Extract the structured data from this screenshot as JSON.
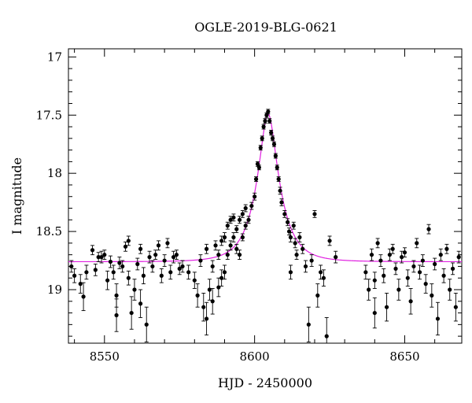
{
  "chart_data": {
    "type": "scatter",
    "title": "OGLE-2019-BLG-0621",
    "xlabel": "HJD - 2450000",
    "ylabel": "I magnitude",
    "xlim": [
      8538,
      8669
    ],
    "ylim": [
      19.46,
      16.93
    ],
    "y_inverted": true,
    "xticks": [
      8550,
      8600,
      8650
    ],
    "xtick_labels": [
      "8550",
      "8600",
      "8650"
    ],
    "yticks": [
      17,
      17.5,
      18,
      18.5,
      19
    ],
    "ytick_labels": [
      "17",
      "17.5",
      "18",
      "18.5",
      "19"
    ],
    "grid": false,
    "series": [
      {
        "kind": "data",
        "color": "#000000",
        "points": [
          {
            "x": 8539,
            "y": 18.8,
            "err": 0.05
          },
          {
            "x": 8540,
            "y": 18.88,
            "err": 0.06
          },
          {
            "x": 8542,
            "y": 18.95,
            "err": 0.08
          },
          {
            "x": 8543,
            "y": 19.06,
            "err": 0.12
          },
          {
            "x": 8544,
            "y": 18.85,
            "err": 0.06
          },
          {
            "x": 8546,
            "y": 18.66,
            "err": 0.04
          },
          {
            "x": 8547,
            "y": 18.83,
            "err": 0.05
          },
          {
            "x": 8548,
            "y": 18.72,
            "err": 0.04
          },
          {
            "x": 8549,
            "y": 18.72,
            "err": 0.05
          },
          {
            "x": 8550,
            "y": 18.7,
            "err": 0.04
          },
          {
            "x": 8551,
            "y": 18.92,
            "err": 0.08
          },
          {
            "x": 8552,
            "y": 18.76,
            "err": 0.05
          },
          {
            "x": 8553,
            "y": 18.85,
            "err": 0.06
          },
          {
            "x": 8554,
            "y": 19.05,
            "err": 0.1
          },
          {
            "x": 8554,
            "y": 19.22,
            "err": 0.14
          },
          {
            "x": 8555,
            "y": 18.77,
            "err": 0.05
          },
          {
            "x": 8556,
            "y": 18.8,
            "err": 0.05
          },
          {
            "x": 8557,
            "y": 18.63,
            "err": 0.04
          },
          {
            "x": 8558,
            "y": 18.58,
            "err": 0.04
          },
          {
            "x": 8558,
            "y": 18.9,
            "err": 0.06
          },
          {
            "x": 8559,
            "y": 19.2,
            "err": 0.14
          },
          {
            "x": 8560,
            "y": 19.0,
            "err": 0.09
          },
          {
            "x": 8561,
            "y": 18.78,
            "err": 0.05
          },
          {
            "x": 8562,
            "y": 18.65,
            "err": 0.04
          },
          {
            "x": 8562,
            "y": 19.12,
            "err": 0.12
          },
          {
            "x": 8563,
            "y": 18.88,
            "err": 0.07
          },
          {
            "x": 8564,
            "y": 19.3,
            "err": 0.15
          },
          {
            "x": 8565,
            "y": 18.72,
            "err": 0.05
          },
          {
            "x": 8566,
            "y": 18.8,
            "err": 0.05
          },
          {
            "x": 8567,
            "y": 18.7,
            "err": 0.04
          },
          {
            "x": 8568,
            "y": 18.62,
            "err": 0.04
          },
          {
            "x": 8569,
            "y": 18.88,
            "err": 0.06
          },
          {
            "x": 8570,
            "y": 18.75,
            "err": 0.05
          },
          {
            "x": 8571,
            "y": 18.6,
            "err": 0.04
          },
          {
            "x": 8572,
            "y": 18.85,
            "err": 0.06
          },
          {
            "x": 8573,
            "y": 18.72,
            "err": 0.05
          },
          {
            "x": 8574,
            "y": 18.7,
            "err": 0.04
          },
          {
            "x": 8575,
            "y": 18.82,
            "err": 0.05
          },
          {
            "x": 8576,
            "y": 18.8,
            "err": 0.05
          },
          {
            "x": 8578,
            "y": 18.85,
            "err": 0.06
          },
          {
            "x": 8580,
            "y": 18.92,
            "err": 0.07
          },
          {
            "x": 8581,
            "y": 19.05,
            "err": 0.1
          },
          {
            "x": 8582,
            "y": 18.75,
            "err": 0.05
          },
          {
            "x": 8583,
            "y": 19.15,
            "err": 0.12
          },
          {
            "x": 8584,
            "y": 19.25,
            "err": 0.14
          },
          {
            "x": 8584,
            "y": 18.65,
            "err": 0.04
          },
          {
            "x": 8585,
            "y": 19.0,
            "err": 0.09
          },
          {
            "x": 8586,
            "y": 18.8,
            "err": 0.05
          },
          {
            "x": 8586,
            "y": 19.1,
            "err": 0.11
          },
          {
            "x": 8587,
            "y": 18.62,
            "err": 0.04
          },
          {
            "x": 8588,
            "y": 18.7,
            "err": 0.04
          },
          {
            "x": 8588,
            "y": 18.98,
            "err": 0.08
          },
          {
            "x": 8589,
            "y": 18.9,
            "err": 0.07
          },
          {
            "x": 8589,
            "y": 18.58,
            "err": 0.04
          },
          {
            "x": 8590,
            "y": 18.85,
            "err": 0.06
          },
          {
            "x": 8590,
            "y": 18.55,
            "err": 0.04
          },
          {
            "x": 8591,
            "y": 18.7,
            "err": 0.04
          },
          {
            "x": 8591,
            "y": 18.45,
            "err": 0.03
          },
          {
            "x": 8592,
            "y": 18.62,
            "err": 0.04
          },
          {
            "x": 8592,
            "y": 18.4,
            "err": 0.03
          },
          {
            "x": 8593,
            "y": 18.55,
            "err": 0.04
          },
          {
            "x": 8593,
            "y": 18.38,
            "err": 0.03
          },
          {
            "x": 8594,
            "y": 18.48,
            "err": 0.03
          },
          {
            "x": 8594,
            "y": 18.65,
            "err": 0.04
          },
          {
            "x": 8595,
            "y": 18.4,
            "err": 0.03
          },
          {
            "x": 8595,
            "y": 18.7,
            "err": 0.04
          },
          {
            "x": 8596,
            "y": 18.35,
            "err": 0.03
          },
          {
            "x": 8596,
            "y": 18.55,
            "err": 0.03
          },
          {
            "x": 8597,
            "y": 18.3,
            "err": 0.03
          },
          {
            "x": 8597,
            "y": 18.45,
            "err": 0.03
          },
          {
            "x": 8598,
            "y": 18.4,
            "err": 0.03
          },
          {
            "x": 8599,
            "y": 18.28,
            "err": 0.03
          },
          {
            "x": 8600,
            "y": 18.2,
            "err": 0.03
          },
          {
            "x": 8600.5,
            "y": 18.05,
            "err": 0.02
          },
          {
            "x": 8601,
            "y": 17.92,
            "err": 0.02
          },
          {
            "x": 8601.5,
            "y": 17.95,
            "err": 0.02
          },
          {
            "x": 8602,
            "y": 17.78,
            "err": 0.02
          },
          {
            "x": 8602.5,
            "y": 17.7,
            "err": 0.02
          },
          {
            "x": 8603,
            "y": 17.6,
            "err": 0.02
          },
          {
            "x": 8603.5,
            "y": 17.55,
            "err": 0.02
          },
          {
            "x": 8604,
            "y": 17.5,
            "err": 0.02
          },
          {
            "x": 8604.5,
            "y": 17.47,
            "err": 0.02
          },
          {
            "x": 8605,
            "y": 17.55,
            "err": 0.02
          },
          {
            "x": 8605.5,
            "y": 17.65,
            "err": 0.02
          },
          {
            "x": 8606,
            "y": 17.7,
            "err": 0.02
          },
          {
            "x": 8606.5,
            "y": 17.75,
            "err": 0.02
          },
          {
            "x": 8607,
            "y": 17.85,
            "err": 0.02
          },
          {
            "x": 8607.5,
            "y": 17.95,
            "err": 0.02
          },
          {
            "x": 8608,
            "y": 18.05,
            "err": 0.02
          },
          {
            "x": 8608.5,
            "y": 18.15,
            "err": 0.03
          },
          {
            "x": 8609,
            "y": 18.25,
            "err": 0.03
          },
          {
            "x": 8610,
            "y": 18.35,
            "err": 0.03
          },
          {
            "x": 8611,
            "y": 18.42,
            "err": 0.03
          },
          {
            "x": 8611.5,
            "y": 18.5,
            "err": 0.03
          },
          {
            "x": 8612,
            "y": 18.55,
            "err": 0.04
          },
          {
            "x": 8612,
            "y": 18.85,
            "err": 0.06
          },
          {
            "x": 8613,
            "y": 18.45,
            "err": 0.03
          },
          {
            "x": 8613.5,
            "y": 18.6,
            "err": 0.04
          },
          {
            "x": 8614,
            "y": 18.7,
            "err": 0.04
          },
          {
            "x": 8615,
            "y": 18.55,
            "err": 0.04
          },
          {
            "x": 8616,
            "y": 18.65,
            "err": 0.04
          },
          {
            "x": 8617,
            "y": 18.8,
            "err": 0.05
          },
          {
            "x": 8618,
            "y": 19.3,
            "err": 0.15
          },
          {
            "x": 8619,
            "y": 18.75,
            "err": 0.05
          },
          {
            "x": 8620,
            "y": 18.35,
            "err": 0.03
          },
          {
            "x": 8621,
            "y": 19.05,
            "err": 0.1
          },
          {
            "x": 8622,
            "y": 18.85,
            "err": 0.06
          },
          {
            "x": 8623,
            "y": 18.9,
            "err": 0.07
          },
          {
            "x": 8624,
            "y": 19.4,
            "err": 0.16
          },
          {
            "x": 8625,
            "y": 18.58,
            "err": 0.04
          },
          {
            "x": 8627,
            "y": 18.72,
            "err": 0.05
          },
          {
            "x": 8637,
            "y": 18.85,
            "err": 0.06
          },
          {
            "x": 8638,
            "y": 19.0,
            "err": 0.09
          },
          {
            "x": 8639,
            "y": 18.7,
            "err": 0.05
          },
          {
            "x": 8640,
            "y": 18.92,
            "err": 0.07
          },
          {
            "x": 8640,
            "y": 19.2,
            "err": 0.13
          },
          {
            "x": 8641,
            "y": 18.6,
            "err": 0.04
          },
          {
            "x": 8642,
            "y": 18.75,
            "err": 0.05
          },
          {
            "x": 8643,
            "y": 18.88,
            "err": 0.06
          },
          {
            "x": 8644,
            "y": 19.15,
            "err": 0.12
          },
          {
            "x": 8645,
            "y": 18.7,
            "err": 0.05
          },
          {
            "x": 8646,
            "y": 18.65,
            "err": 0.04
          },
          {
            "x": 8647,
            "y": 18.82,
            "err": 0.05
          },
          {
            "x": 8648,
            "y": 19.0,
            "err": 0.09
          },
          {
            "x": 8649,
            "y": 18.72,
            "err": 0.05
          },
          {
            "x": 8650,
            "y": 18.68,
            "err": 0.04
          },
          {
            "x": 8651,
            "y": 18.9,
            "err": 0.07
          },
          {
            "x": 8652,
            "y": 19.1,
            "err": 0.11
          },
          {
            "x": 8653,
            "y": 18.8,
            "err": 0.05
          },
          {
            "x": 8654,
            "y": 18.6,
            "err": 0.04
          },
          {
            "x": 8655,
            "y": 18.85,
            "err": 0.06
          },
          {
            "x": 8656,
            "y": 18.75,
            "err": 0.05
          },
          {
            "x": 8657,
            "y": 18.95,
            "err": 0.08
          },
          {
            "x": 8658,
            "y": 18.48,
            "err": 0.04
          },
          {
            "x": 8659,
            "y": 19.05,
            "err": 0.1
          },
          {
            "x": 8660,
            "y": 18.78,
            "err": 0.05
          },
          {
            "x": 8661,
            "y": 19.25,
            "err": 0.14
          },
          {
            "x": 8662,
            "y": 18.7,
            "err": 0.05
          },
          {
            "x": 8663,
            "y": 18.88,
            "err": 0.06
          },
          {
            "x": 8664,
            "y": 18.65,
            "err": 0.04
          },
          {
            "x": 8665,
            "y": 19.0,
            "err": 0.09
          },
          {
            "x": 8666,
            "y": 18.82,
            "err": 0.05
          },
          {
            "x": 8667,
            "y": 19.15,
            "err": 0.12
          },
          {
            "x": 8668,
            "y": 18.72,
            "err": 0.05
          }
        ]
      },
      {
        "kind": "model",
        "color": "#e020e0",
        "baseline": 18.76,
        "peak_x": 8604.5,
        "peak_y": 17.49,
        "tE": 7.5,
        "u0": 0.33
      }
    ]
  }
}
